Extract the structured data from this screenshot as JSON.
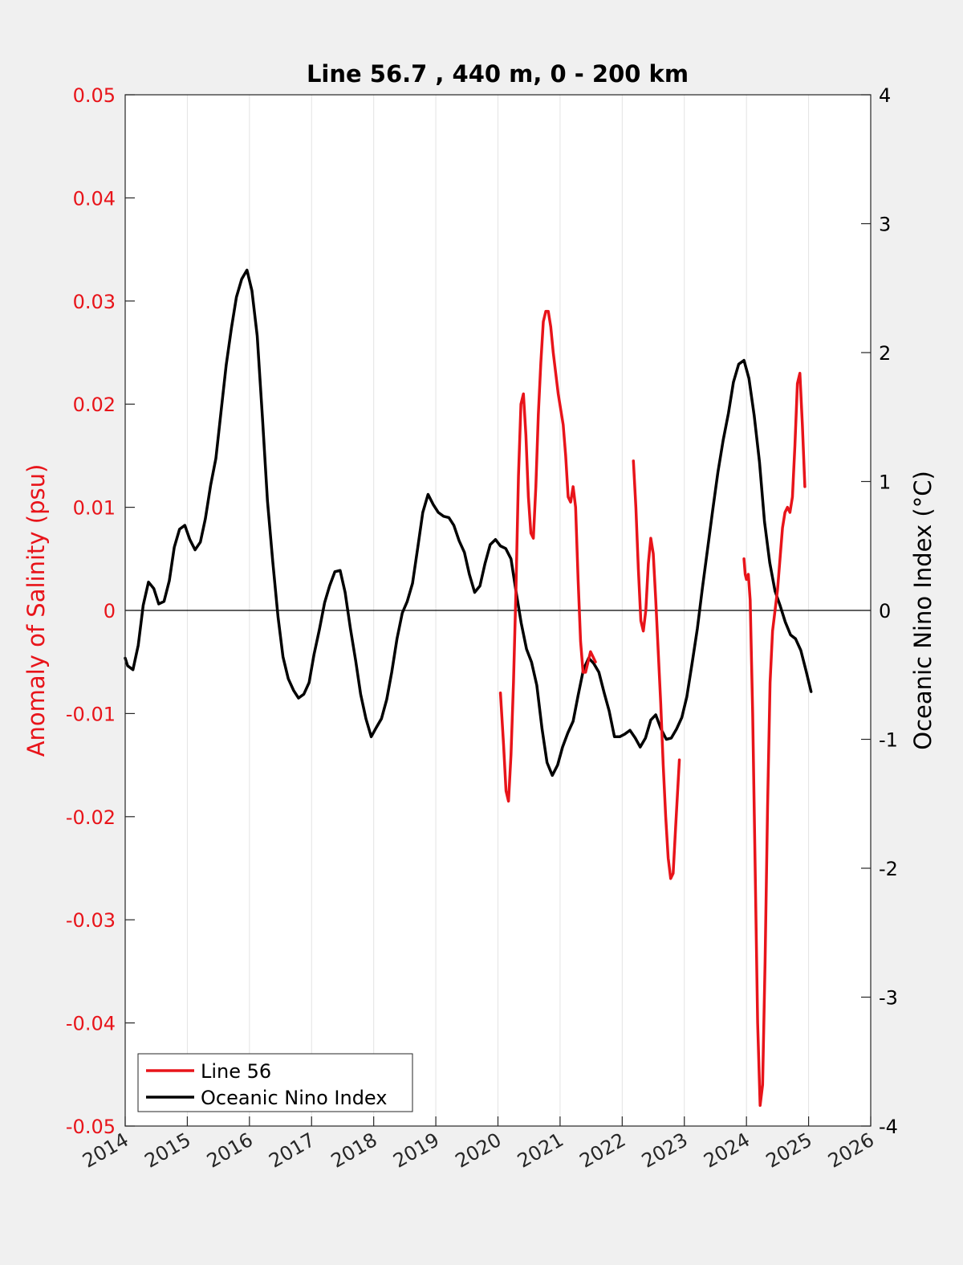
{
  "chart_data": {
    "type": "line",
    "title": "Line 56.7 , 440 m, 0 - 200 km",
    "xlim": [
      2014,
      2026
    ],
    "x_ticks": [
      "2014",
      "2015",
      "2016",
      "2017",
      "2018",
      "2019",
      "2020",
      "2021",
      "2022",
      "2023",
      "2024",
      "2025",
      "2026"
    ],
    "left_axis": {
      "label": "Anomaly of Salinity (psu)",
      "ylim": [
        -0.05,
        0.05
      ],
      "ticks": [
        "-0.05",
        "-0.04",
        "-0.03",
        "-0.02",
        "-0.01",
        "0",
        "0.01",
        "0.02",
        "0.03",
        "0.04",
        "0.05"
      ],
      "color": "#e8141a"
    },
    "right_axis": {
      "label": "Oceanic Nino Index (°C)",
      "ylim": [
        -4,
        4
      ],
      "ticks": [
        "-4",
        "-3",
        "-2",
        "-1",
        "0",
        "1",
        "2",
        "3",
        "4"
      ],
      "color": "#000000"
    },
    "grid": "vertical",
    "legend_position": "bottom-left",
    "series": [
      {
        "name": "Line 56",
        "axis": "left",
        "color": "#e8141a",
        "segments": [
          [
            [
              2020.04,
              -0.008
            ],
            [
              2020.09,
              -0.013
            ],
            [
              2020.13,
              -0.0175
            ],
            [
              2020.17,
              -0.0185
            ],
            [
              2020.21,
              -0.014
            ],
            [
              2020.25,
              -0.007
            ],
            [
              2020.29,
              0.002
            ],
            [
              2020.33,
              0.013
            ],
            [
              2020.37,
              0.02
            ],
            [
              2020.41,
              0.021
            ],
            [
              2020.45,
              0.017
            ],
            [
              2020.49,
              0.011
            ],
            [
              2020.53,
              0.0075
            ],
            [
              2020.57,
              0.007
            ],
            [
              2020.61,
              0.012
            ],
            [
              2020.65,
              0.019
            ],
            [
              2020.69,
              0.024
            ],
            [
              2020.73,
              0.028
            ],
            [
              2020.77,
              0.029
            ],
            [
              2020.81,
              0.029
            ],
            [
              2020.85,
              0.0275
            ],
            [
              2020.89,
              0.025
            ],
            [
              2020.93,
              0.023
            ],
            [
              2020.97,
              0.021
            ],
            [
              2021.01,
              0.0195
            ],
            [
              2021.05,
              0.018
            ],
            [
              2021.09,
              0.015
            ],
            [
              2021.13,
              0.011
            ],
            [
              2021.17,
              0.0105
            ],
            [
              2021.21,
              0.012
            ],
            [
              2021.25,
              0.01
            ],
            [
              2021.29,
              0.003
            ],
            [
              2021.33,
              -0.003
            ],
            [
              2021.37,
              -0.006
            ],
            [
              2021.41,
              -0.006
            ],
            [
              2021.45,
              -0.005
            ],
            [
              2021.49,
              -0.004
            ],
            [
              2021.53,
              -0.0045
            ],
            [
              2021.57,
              -0.005
            ]
          ],
          [
            [
              2022.18,
              0.0145
            ],
            [
              2022.22,
              0.01
            ],
            [
              2022.26,
              0.004
            ],
            [
              2022.3,
              -0.001
            ],
            [
              2022.34,
              -0.002
            ],
            [
              2022.38,
              0.0
            ],
            [
              2022.42,
              0.0045
            ],
            [
              2022.46,
              0.007
            ],
            [
              2022.5,
              0.0055
            ],
            [
              2022.54,
              0.001
            ],
            [
              2022.58,
              -0.004
            ],
            [
              2022.62,
              -0.009
            ],
            [
              2022.66,
              -0.015
            ],
            [
              2022.7,
              -0.02
            ],
            [
              2022.74,
              -0.024
            ],
            [
              2022.78,
              -0.026
            ],
            [
              2022.82,
              -0.0255
            ],
            [
              2022.86,
              -0.021
            ],
            [
              2022.92,
              -0.0145
            ]
          ],
          [
            [
              2023.96,
              0.005
            ],
            [
              2023.98,
              0.0035
            ],
            [
              2024.0,
              0.003
            ],
            [
              2024.03,
              0.0035
            ],
            [
              2024.06,
              0.001
            ],
            [
              2024.1,
              -0.01
            ],
            [
              2024.14,
              -0.025
            ],
            [
              2024.18,
              -0.04
            ],
            [
              2024.22,
              -0.048
            ],
            [
              2024.26,
              -0.046
            ],
            [
              2024.3,
              -0.034
            ],
            [
              2024.34,
              -0.019
            ],
            [
              2024.38,
              -0.007
            ],
            [
              2024.42,
              -0.002
            ],
            [
              2024.46,
              0.0
            ],
            [
              2024.5,
              0.002
            ],
            [
              2024.54,
              0.005
            ],
            [
              2024.58,
              0.008
            ],
            [
              2024.62,
              0.0095
            ],
            [
              2024.66,
              0.01
            ],
            [
              2024.7,
              0.0095
            ],
            [
              2024.74,
              0.011
            ],
            [
              2024.78,
              0.016
            ],
            [
              2024.82,
              0.022
            ],
            [
              2024.86,
              0.023
            ],
            [
              2024.9,
              0.018
            ],
            [
              2024.94,
              0.012
            ]
          ]
        ]
      },
      {
        "name": "Oceanic Nino Index",
        "axis": "right",
        "color": "#000000",
        "segments": [
          [
            [
              2014.0,
              -0.37
            ],
            [
              2014.04,
              -0.43
            ],
            [
              2014.125,
              -0.46
            ],
            [
              2014.21,
              -0.27
            ],
            [
              2014.29,
              0.04
            ],
            [
              2014.375,
              0.22
            ],
            [
              2014.46,
              0.17
            ],
            [
              2014.54,
              0.05
            ],
            [
              2014.625,
              0.07
            ],
            [
              2014.71,
              0.23
            ],
            [
              2014.79,
              0.49
            ],
            [
              2014.875,
              0.63
            ],
            [
              2014.96,
              0.66
            ],
            [
              2015.04,
              0.55
            ],
            [
              2015.125,
              0.47
            ],
            [
              2015.21,
              0.53
            ],
            [
              2015.29,
              0.71
            ],
            [
              2015.375,
              0.97
            ],
            [
              2015.46,
              1.18
            ],
            [
              2015.54,
              1.53
            ],
            [
              2015.625,
              1.9
            ],
            [
              2015.71,
              2.19
            ],
            [
              2015.79,
              2.43
            ],
            [
              2015.875,
              2.57
            ],
            [
              2015.96,
              2.64
            ],
            [
              2016.04,
              2.48
            ],
            [
              2016.125,
              2.13
            ],
            [
              2016.21,
              1.49
            ],
            [
              2016.29,
              0.85
            ],
            [
              2016.375,
              0.38
            ],
            [
              2016.46,
              -0.05
            ],
            [
              2016.54,
              -0.36
            ],
            [
              2016.625,
              -0.53
            ],
            [
              2016.71,
              -0.62
            ],
            [
              2016.79,
              -0.68
            ],
            [
              2016.875,
              -0.65
            ],
            [
              2016.96,
              -0.56
            ],
            [
              2017.04,
              -0.34
            ],
            [
              2017.125,
              -0.15
            ],
            [
              2017.21,
              0.06
            ],
            [
              2017.29,
              0.19
            ],
            [
              2017.375,
              0.3
            ],
            [
              2017.46,
              0.31
            ],
            [
              2017.54,
              0.14
            ],
            [
              2017.625,
              -0.14
            ],
            [
              2017.71,
              -0.39
            ],
            [
              2017.79,
              -0.65
            ],
            [
              2017.875,
              -0.84
            ],
            [
              2017.96,
              -0.98
            ],
            [
              2018.04,
              -0.91
            ],
            [
              2018.125,
              -0.84
            ],
            [
              2018.21,
              -0.69
            ],
            [
              2018.29,
              -0.48
            ],
            [
              2018.375,
              -0.22
            ],
            [
              2018.46,
              -0.02
            ],
            [
              2018.54,
              0.07
            ],
            [
              2018.625,
              0.21
            ],
            [
              2018.71,
              0.49
            ],
            [
              2018.79,
              0.76
            ],
            [
              2018.875,
              0.9
            ],
            [
              2018.96,
              0.82
            ],
            [
              2019.04,
              0.76
            ],
            [
              2019.125,
              0.73
            ],
            [
              2019.21,
              0.72
            ],
            [
              2019.29,
              0.66
            ],
            [
              2019.375,
              0.54
            ],
            [
              2019.46,
              0.45
            ],
            [
              2019.54,
              0.28
            ],
            [
              2019.625,
              0.14
            ],
            [
              2019.71,
              0.19
            ],
            [
              2019.79,
              0.36
            ],
            [
              2019.875,
              0.51
            ],
            [
              2019.96,
              0.55
            ],
            [
              2020.04,
              0.5
            ],
            [
              2020.125,
              0.48
            ],
            [
              2020.21,
              0.4
            ],
            [
              2020.29,
              0.15
            ],
            [
              2020.375,
              -0.1
            ],
            [
              2020.46,
              -0.3
            ],
            [
              2020.54,
              -0.4
            ],
            [
              2020.625,
              -0.58
            ],
            [
              2020.71,
              -0.92
            ],
            [
              2020.79,
              -1.18
            ],
            [
              2020.875,
              -1.28
            ],
            [
              2020.96,
              -1.2
            ],
            [
              2021.04,
              -1.06
            ],
            [
              2021.125,
              -0.95
            ],
            [
              2021.21,
              -0.86
            ],
            [
              2021.29,
              -0.66
            ],
            [
              2021.375,
              -0.46
            ],
            [
              2021.46,
              -0.37
            ],
            [
              2021.54,
              -0.41
            ],
            [
              2021.625,
              -0.48
            ],
            [
              2021.71,
              -0.64
            ],
            [
              2021.79,
              -0.78
            ],
            [
              2021.875,
              -0.98
            ],
            [
              2021.96,
              -0.98
            ],
            [
              2022.04,
              -0.96
            ],
            [
              2022.125,
              -0.93
            ],
            [
              2022.21,
              -0.99
            ],
            [
              2022.29,
              -1.06
            ],
            [
              2022.375,
              -0.99
            ],
            [
              2022.46,
              -0.85
            ],
            [
              2022.54,
              -0.81
            ],
            [
              2022.625,
              -0.92
            ],
            [
              2022.71,
              -1.0
            ],
            [
              2022.79,
              -0.99
            ],
            [
              2022.875,
              -0.92
            ],
            [
              2022.96,
              -0.83
            ],
            [
              2023.04,
              -0.67
            ],
            [
              2023.125,
              -0.41
            ],
            [
              2023.21,
              -0.14
            ],
            [
              2023.29,
              0.17
            ],
            [
              2023.375,
              0.48
            ],
            [
              2023.46,
              0.79
            ],
            [
              2023.54,
              1.07
            ],
            [
              2023.625,
              1.32
            ],
            [
              2023.71,
              1.53
            ],
            [
              2023.79,
              1.77
            ],
            [
              2023.875,
              1.91
            ],
            [
              2023.96,
              1.94
            ],
            [
              2024.04,
              1.8
            ],
            [
              2024.125,
              1.51
            ],
            [
              2024.21,
              1.15
            ],
            [
              2024.29,
              0.69
            ],
            [
              2024.375,
              0.37
            ],
            [
              2024.46,
              0.15
            ],
            [
              2024.54,
              0.04
            ],
            [
              2024.625,
              -0.09
            ],
            [
              2024.71,
              -0.19
            ],
            [
              2024.79,
              -0.22
            ],
            [
              2024.875,
              -0.31
            ],
            [
              2024.96,
              -0.47
            ],
            [
              2025.04,
              -0.63
            ]
          ]
        ]
      }
    ]
  }
}
